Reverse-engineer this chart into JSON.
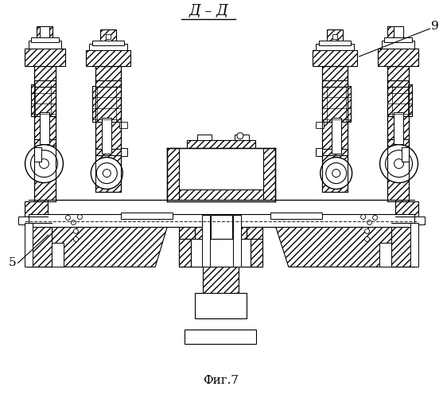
{
  "title": "Д – Д",
  "caption": "Фиг.7",
  "label_5": "5",
  "label_9": "9",
  "bg_color": "#ffffff",
  "line_color": "#000000"
}
